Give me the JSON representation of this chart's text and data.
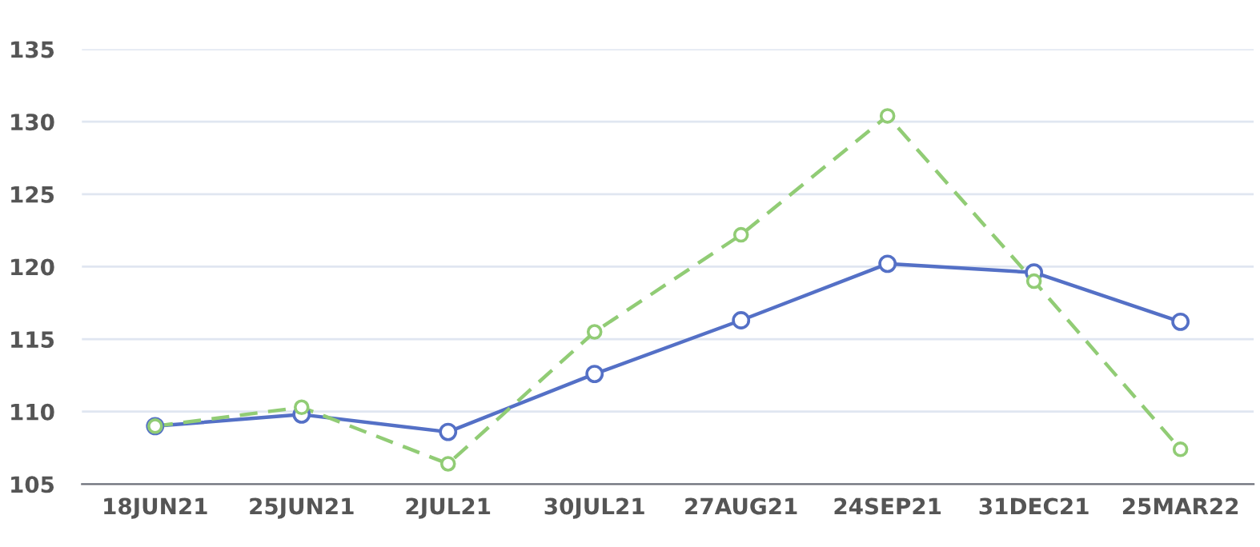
{
  "chart_data": {
    "type": "line",
    "categories": [
      "18JUN21",
      "25JUN21",
      "2JUL21",
      "30JUL21",
      "27AUG21",
      "24SEP21",
      "31DEC21",
      "25MAR22"
    ],
    "series": [
      {
        "color": "#5470c6",
        "line_style": "solid",
        "values": [
          109.0,
          109.8,
          108.6,
          112.6,
          116.3,
          120.2,
          119.6,
          116.2
        ]
      },
      {
        "color": "#91cc75",
        "line_style": "dashed",
        "values": [
          109.0,
          110.3,
          106.4,
          115.5,
          122.2,
          130.4,
          119.0,
          107.4
        ]
      }
    ],
    "ylim": [
      105,
      135
    ],
    "yticks": [
      105,
      110,
      115,
      120,
      125,
      130,
      135
    ],
    "grid": "y",
    "marker": "circle",
    "legend": false
  }
}
